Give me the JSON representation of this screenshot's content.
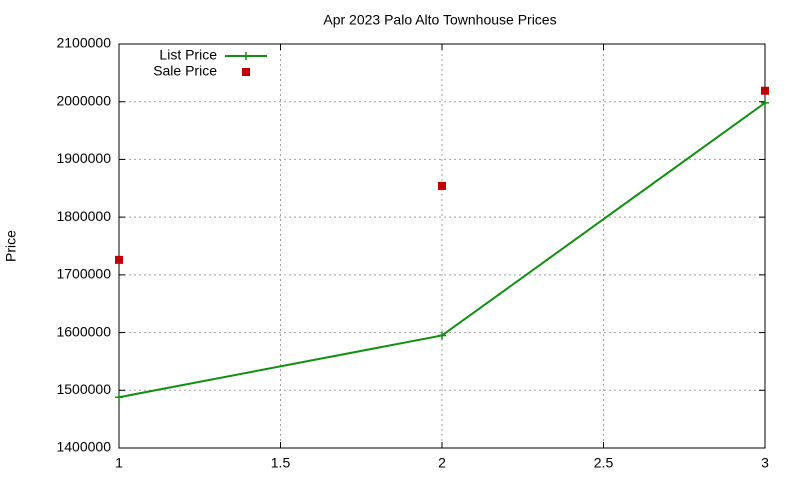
{
  "chart_data": {
    "type": "line",
    "title": "Apr 2023 Palo Alto Townhouse Prices",
    "y_label": "Price",
    "x": [
      1,
      2,
      3
    ],
    "series": [
      {
        "name": "List Price",
        "color": "#109010",
        "style": "linespoints",
        "values": [
          1488000,
          1595000,
          1998000
        ]
      },
      {
        "name": "Sale Price",
        "color": "#c00000",
        "style": "points",
        "values": [
          1726000,
          1854000,
          2019000
        ]
      }
    ],
    "xlim": [
      1,
      3
    ],
    "xticks": [
      1,
      1.5,
      2,
      2.5,
      3
    ],
    "ylim": [
      1400000,
      2100000
    ],
    "yticks": [
      1400000,
      1500000,
      1600000,
      1700000,
      1800000,
      1900000,
      2000000,
      2100000
    ],
    "grid": true,
    "legend": "top-left"
  }
}
